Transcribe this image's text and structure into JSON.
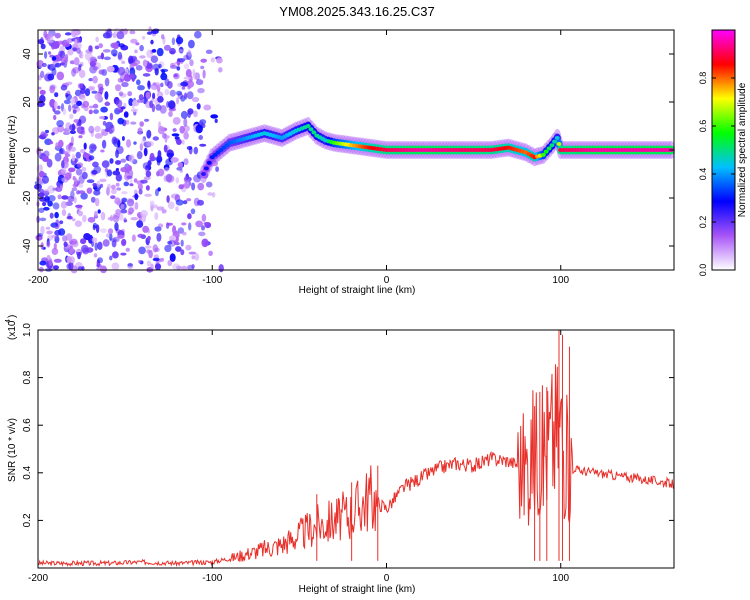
{
  "figure_title": "YM08.2025.343.16.25.C37",
  "chart_data": [
    {
      "type": "heatmap",
      "title": "YM08.2025.343.16.25.C37",
      "xlabel": "Height of straight line (km)",
      "ylabel": "Frequency (Hz)",
      "xlim": [
        -200,
        165
      ],
      "ylim": [
        -50,
        50
      ],
      "xticks": [
        -200,
        -100,
        0,
        100
      ],
      "yticks": [
        -40,
        -20,
        0,
        20,
        40
      ],
      "colorbar": {
        "label": "Normalized spectral amplitude",
        "range": [
          0.0,
          1.0
        ],
        "ticks": [
          0.0,
          0.2,
          0.4,
          0.6,
          0.8
        ],
        "tick_labels": [
          "0.0",
          "0.2",
          "0.4",
          "0.6",
          "0.8"
        ],
        "colors": [
          "#ffffff",
          "#a855f7",
          "#0000ff",
          "#00c0ff",
          "#00ff00",
          "#ffff00",
          "#ff0000",
          "#ff00ff"
        ]
      },
      "noise_region_x": [
        -200,
        -92
      ],
      "ridge": {
        "x": [
          -105,
          -100,
          -90,
          -80,
          -70,
          -60,
          -52,
          -45,
          -40,
          -35,
          -30,
          -20,
          -10,
          0,
          20,
          40,
          60,
          70,
          80,
          85,
          90,
          95,
          98,
          100,
          120,
          140,
          165
        ],
        "y": [
          -10,
          -3,
          3,
          5,
          7,
          5,
          8,
          10,
          6,
          4,
          3,
          2,
          1,
          0,
          0,
          0,
          0,
          1,
          -1,
          -3,
          -2,
          2,
          5,
          0,
          0,
          0,
          0
        ],
        "amplitude": [
          0.25,
          0.3,
          0.35,
          0.4,
          0.45,
          0.4,
          0.45,
          0.5,
          0.5,
          0.45,
          0.6,
          0.75,
          0.85,
          0.9,
          0.95,
          0.92,
          0.9,
          0.85,
          0.8,
          0.85,
          0.6,
          0.5,
          0.45,
          0.9,
          0.95,
          0.95,
          0.95
        ]
      }
    },
    {
      "type": "line",
      "xlabel": "Height of straight line (km)",
      "ylabel": "SNR (10 * v/v)",
      "y_multiplier_label": "(x10",
      "y_multiplier_exponent": "4",
      "xlim": [
        -200,
        165
      ],
      "ylim": [
        0,
        1.0
      ],
      "xticks": [
        -200,
        -100,
        0,
        100
      ],
      "yticks": [
        0.2,
        0.4,
        0.6,
        0.8,
        1.0
      ],
      "ytick_labels": [
        "0.2",
        "0.4",
        "0.6",
        "0.8",
        "1.0"
      ],
      "color": "#e8302a",
      "x": [
        -200,
        -180,
        -160,
        -140,
        -120,
        -100,
        -90,
        -80,
        -70,
        -60,
        -50,
        -40,
        -30,
        -20,
        -10,
        0,
        10,
        20,
        30,
        40,
        50,
        60,
        70,
        80,
        85,
        90,
        95,
        100,
        102,
        105,
        106,
        110,
        120,
        130,
        140,
        150,
        160,
        165
      ],
      "y": [
        0.02,
        0.02,
        0.02,
        0.025,
        0.02,
        0.025,
        0.04,
        0.06,
        0.08,
        0.1,
        0.14,
        0.18,
        0.2,
        0.23,
        0.3,
        0.25,
        0.34,
        0.38,
        0.42,
        0.44,
        0.43,
        0.46,
        0.45,
        0.42,
        0.5,
        0.48,
        0.55,
        0.6,
        0.5,
        0.42,
        0.44,
        0.41,
        0.4,
        0.39,
        0.38,
        0.37,
        0.36,
        0.35
      ],
      "spikes": [
        {
          "x": 85,
          "y": 0.68
        },
        {
          "x": 88,
          "y": 0.74
        },
        {
          "x": 92,
          "y": 0.76
        },
        {
          "x": 99,
          "y": 1.0
        },
        {
          "x": 101,
          "y": 0.98
        },
        {
          "x": 105,
          "y": 0.93
        },
        {
          "x": -5,
          "y": 0.43
        },
        {
          "x": -20,
          "y": 0.36
        },
        {
          "x": -40,
          "y": 0.31
        }
      ]
    }
  ]
}
